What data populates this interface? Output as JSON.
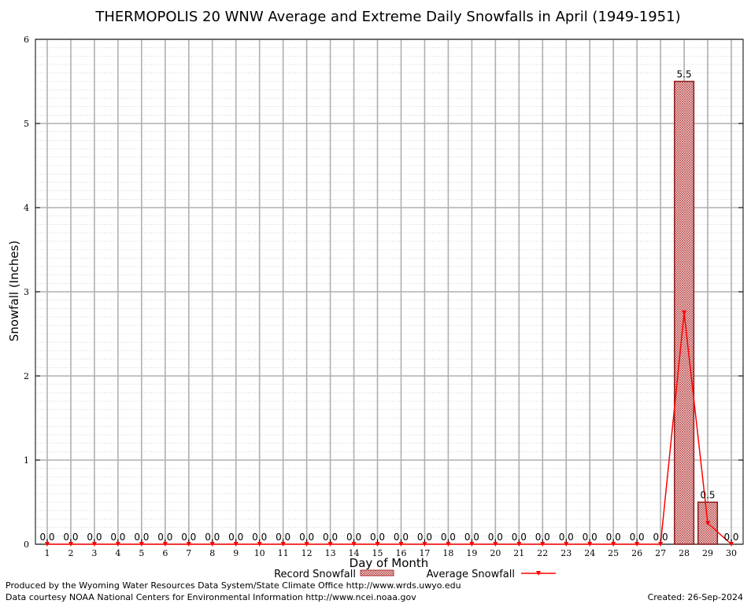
{
  "chart_data": {
    "type": "bar",
    "title": "THERMOPOLIS 20 WNW Average and Extreme Daily Snowfalls in April (1949-1951)",
    "xlabel": "Day of Month",
    "ylabel": "Snowfall (Inches)",
    "ylim": [
      0,
      6
    ],
    "yticks": [
      0,
      1,
      2,
      3,
      4,
      5,
      6
    ],
    "grid": true,
    "legend_position": "bottom",
    "categories": [
      "1",
      "2",
      "3",
      "4",
      "5",
      "6",
      "7",
      "8",
      "9",
      "10",
      "11",
      "12",
      "13",
      "14",
      "15",
      "16",
      "17",
      "18",
      "19",
      "20",
      "21",
      "22",
      "23",
      "24",
      "25",
      "26",
      "27",
      "28",
      "29",
      "30"
    ],
    "series": [
      {
        "name": "Record Snowfall",
        "kind": "bar",
        "color": "#b03030",
        "values": [
          0,
          0,
          0,
          0,
          0,
          0,
          0,
          0,
          0,
          0,
          0,
          0,
          0,
          0,
          0,
          0,
          0,
          0,
          0,
          0,
          0,
          0,
          0,
          0,
          0,
          0,
          0,
          5.5,
          0.5,
          0
        ],
        "labels": [
          "0.0",
          "0.0",
          "0.0",
          "0.0",
          "0.0",
          "0.0",
          "0.0",
          "0.0",
          "0.0",
          "0.0",
          "0.0",
          "0.0",
          "0.0",
          "0.0",
          "0.0",
          "0.0",
          "0.0",
          "0.0",
          "0.0",
          "0.0",
          "0.0",
          "0.0",
          "0.0",
          "0.0",
          "0.0",
          "0.0",
          "0.0",
          "5.5",
          "0.5",
          "0.0"
        ]
      },
      {
        "name": "Average Snowfall",
        "kind": "line",
        "color": "#ff0000",
        "values": [
          0,
          0,
          0,
          0,
          0,
          0,
          0,
          0,
          0,
          0,
          0,
          0,
          0,
          0,
          0,
          0,
          0,
          0,
          0,
          0,
          0,
          0,
          0,
          0,
          0,
          0,
          0,
          2.75,
          0.25,
          0
        ]
      }
    ]
  },
  "footer": {
    "produced_by": "Produced by the Wyoming Water Resources Data System/State Climate Office http://www.wrds.uwyo.edu",
    "data_courtesy": "Data courtesy NOAA National Centers for Environmental Information http://www.ncei.noaa.gov",
    "created": "Created: 26-Sep-2024"
  }
}
